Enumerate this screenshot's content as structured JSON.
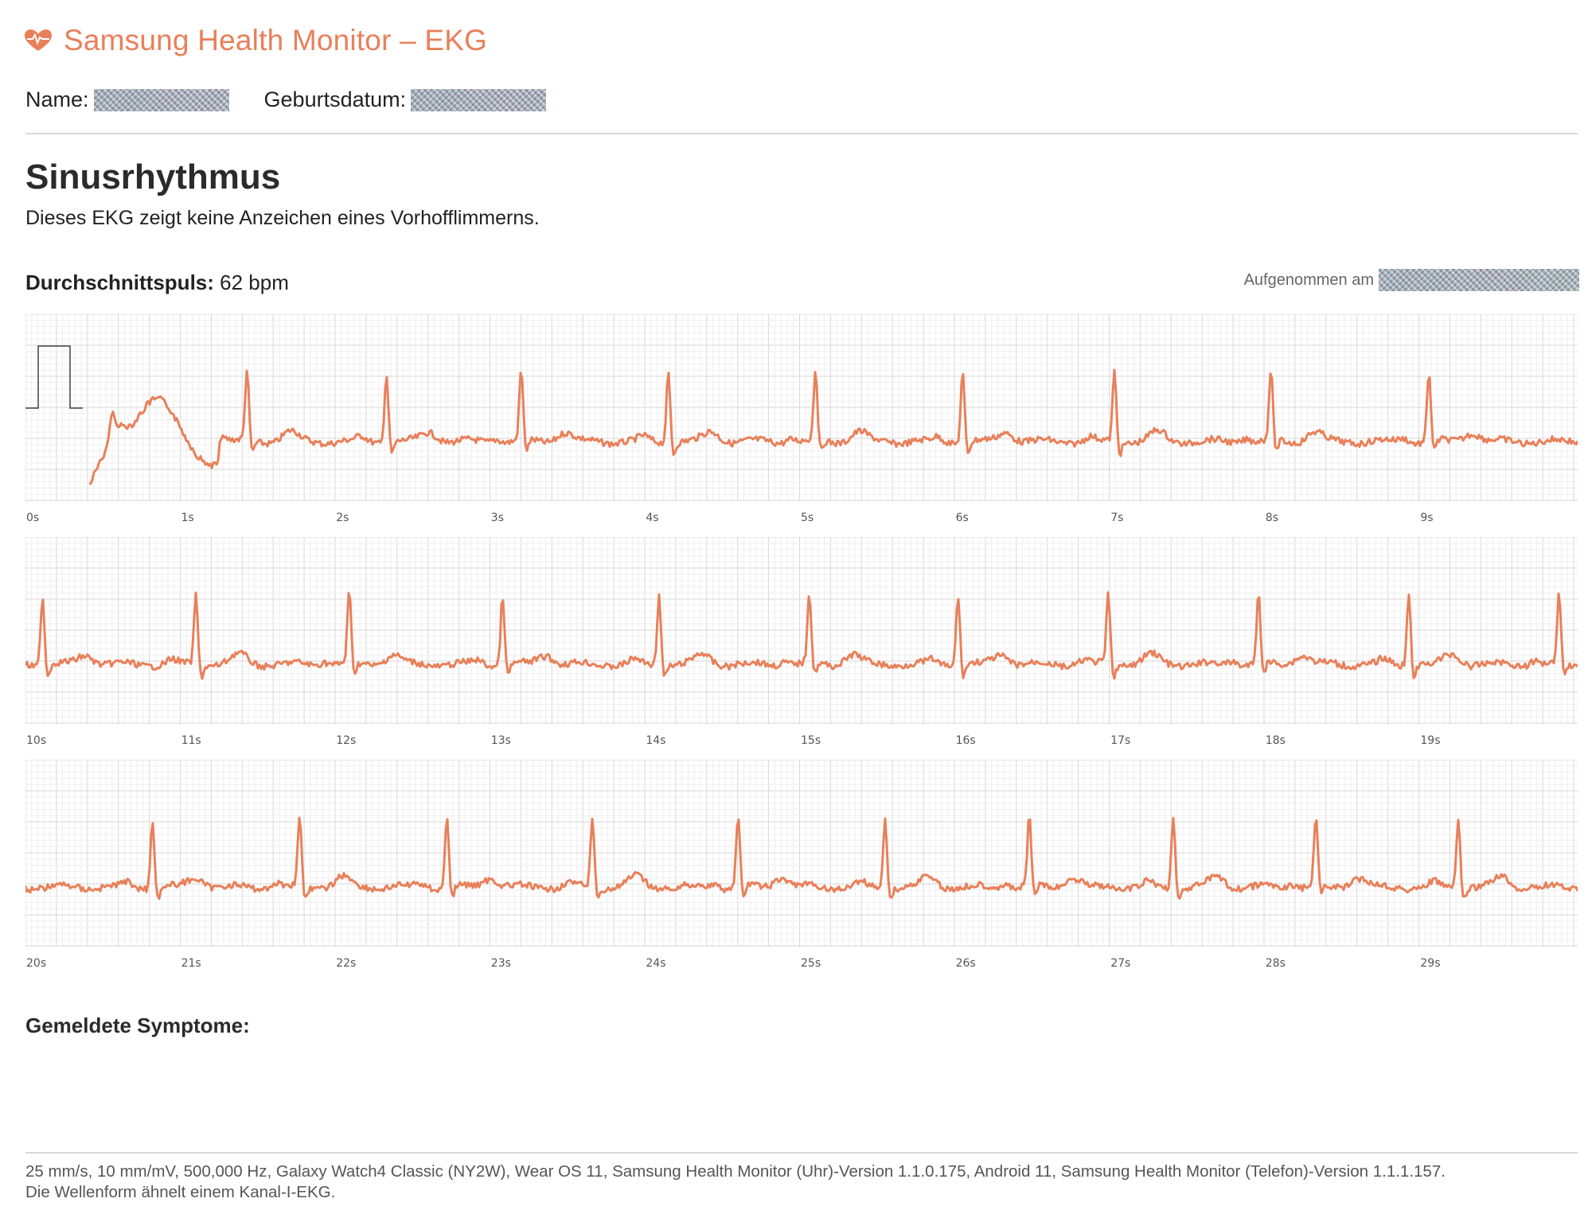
{
  "header": {
    "logo_icon": "heart-icon",
    "title": "Samsung Health Monitor – EKG",
    "accent_color": "#e8805a"
  },
  "patient": {
    "name_label": "Name:",
    "birthdate_label": "Geburtsdatum:"
  },
  "result": {
    "title": "Sinusrhythmus",
    "description": "Dieses EKG zeigt keine Anzeichen eines Vorhofflimmerns."
  },
  "heart_rate": {
    "label": "Durchschnittspuls:",
    "value": "62 bpm"
  },
  "recorded_label": "Aufgenommen am",
  "ecg": {
    "strips": [
      {
        "start_s": 0,
        "tick_labels": [
          "0s",
          "1s",
          "2s",
          "3s",
          "4s",
          "5s",
          "6s",
          "7s",
          "8s",
          "9s"
        ],
        "beats_s": [
          1.43,
          2.33,
          3.2,
          4.15,
          5.1,
          6.05,
          7.03,
          8.04,
          9.06
        ]
      },
      {
        "start_s": 10,
        "tick_labels": [
          "10s",
          "11s",
          "12s",
          "13s",
          "14s",
          "15s",
          "16s",
          "17s",
          "18s",
          "19s"
        ],
        "beats_s": [
          10.11,
          11.1,
          12.09,
          13.08,
          14.09,
          15.06,
          16.02,
          16.99,
          17.96,
          18.93,
          19.9
        ]
      },
      {
        "start_s": 20,
        "tick_labels": [
          "20s",
          "21s",
          "22s",
          "23s",
          "24s",
          "25s",
          "26s",
          "27s",
          "28s",
          "29s"
        ],
        "beats_s": [
          20.82,
          21.77,
          22.72,
          23.66,
          24.6,
          25.55,
          26.48,
          27.41,
          28.33,
          29.25
        ]
      }
    ]
  },
  "symptoms_label": "Gemeldete Symptome:",
  "footer": {
    "line1": "25 mm/s, 10 mm/mV, 500,000 Hz, Galaxy Watch4 Classic (NY2W), Wear OS 11, Samsung Health Monitor (Uhr)-Version 1.1.0.175, Android 11, Samsung Health Monitor (Telefon)-Version 1.1.1.157.",
    "line2": "Die Wellenform ähnelt einem Kanal-I-EKG."
  }
}
